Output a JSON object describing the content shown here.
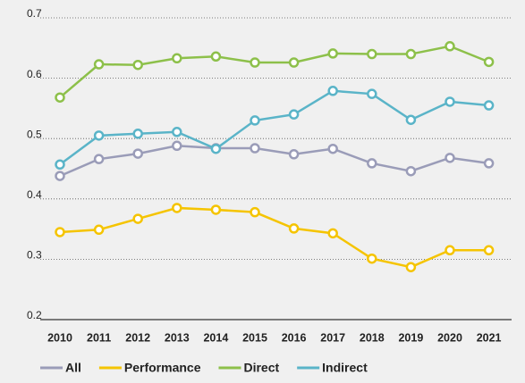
{
  "chart_data": {
    "type": "line",
    "categories": [
      "2010",
      "2011",
      "2012",
      "2013",
      "2014",
      "2015",
      "2016",
      "2017",
      "2018",
      "2019",
      "2020",
      "2021"
    ],
    "series": [
      {
        "name": "All",
        "color": "#9a9cb8",
        "values": [
          0.438,
          0.466,
          0.475,
          0.488,
          0.484,
          0.484,
          0.474,
          0.483,
          0.459,
          0.446,
          0.468,
          0.459
        ]
      },
      {
        "name": "Performance",
        "color": "#f5c400",
        "values": [
          0.345,
          0.349,
          0.367,
          0.385,
          0.382,
          0.378,
          0.351,
          0.343,
          0.301,
          0.287,
          0.315,
          0.315
        ]
      },
      {
        "name": "Direct",
        "color": "#8dc04a",
        "values": [
          0.568,
          0.623,
          0.622,
          0.633,
          0.636,
          0.626,
          0.626,
          0.641,
          0.64,
          0.64,
          0.653,
          0.627
        ]
      },
      {
        "name": "Indirect",
        "color": "#5ab4c8",
        "values": [
          0.457,
          0.505,
          0.508,
          0.511,
          0.483,
          0.53,
          0.54,
          0.579,
          0.574,
          0.531,
          0.561,
          0.555
        ]
      }
    ],
    "ylim": [
      0.2,
      0.7
    ],
    "yticks": [
      0.2,
      0.3,
      0.4,
      0.5,
      0.6,
      0.7
    ],
    "grid": true,
    "legend": "bottom"
  }
}
